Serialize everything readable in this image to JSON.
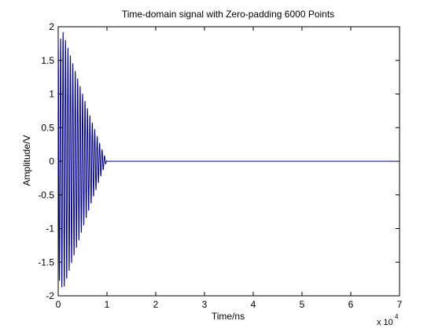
{
  "chart_data": {
    "type": "line",
    "title": "Time-domain signal with Zero-padding 6000 Points",
    "xlabel": "Time/ns",
    "ylabel": "Amplitude/V",
    "x_multiplier_label": "x 10",
    "x_multiplier_exponent": "4",
    "xlim": [
      0,
      70000
    ],
    "ylim": [
      -2,
      2
    ],
    "xticks": [
      0,
      10000,
      20000,
      30000,
      40000,
      50000,
      60000,
      70000
    ],
    "xtick_labels": [
      "0",
      "1",
      "2",
      "3",
      "4",
      "5",
      "6",
      "7"
    ],
    "yticks": [
      -2,
      -1.5,
      -1,
      -0.5,
      0,
      0.5,
      1,
      1.5,
      2
    ],
    "ytick_labels": [
      "-2",
      "-1.5",
      "-1",
      "-0.5",
      "0",
      "0.5",
      "1",
      "1.5",
      "2"
    ],
    "grid": false,
    "series": [
      {
        "color": "#00007f",
        "signal": {
          "description": "decaying oscillation, zero after ~10000 ns",
          "peak_amplitude": 1.92,
          "start_time": 0,
          "oscillation_end_time": 10000,
          "zero_padding_end_time": 70000,
          "period": 500,
          "envelope_peak_time": 1000
        }
      }
    ]
  }
}
